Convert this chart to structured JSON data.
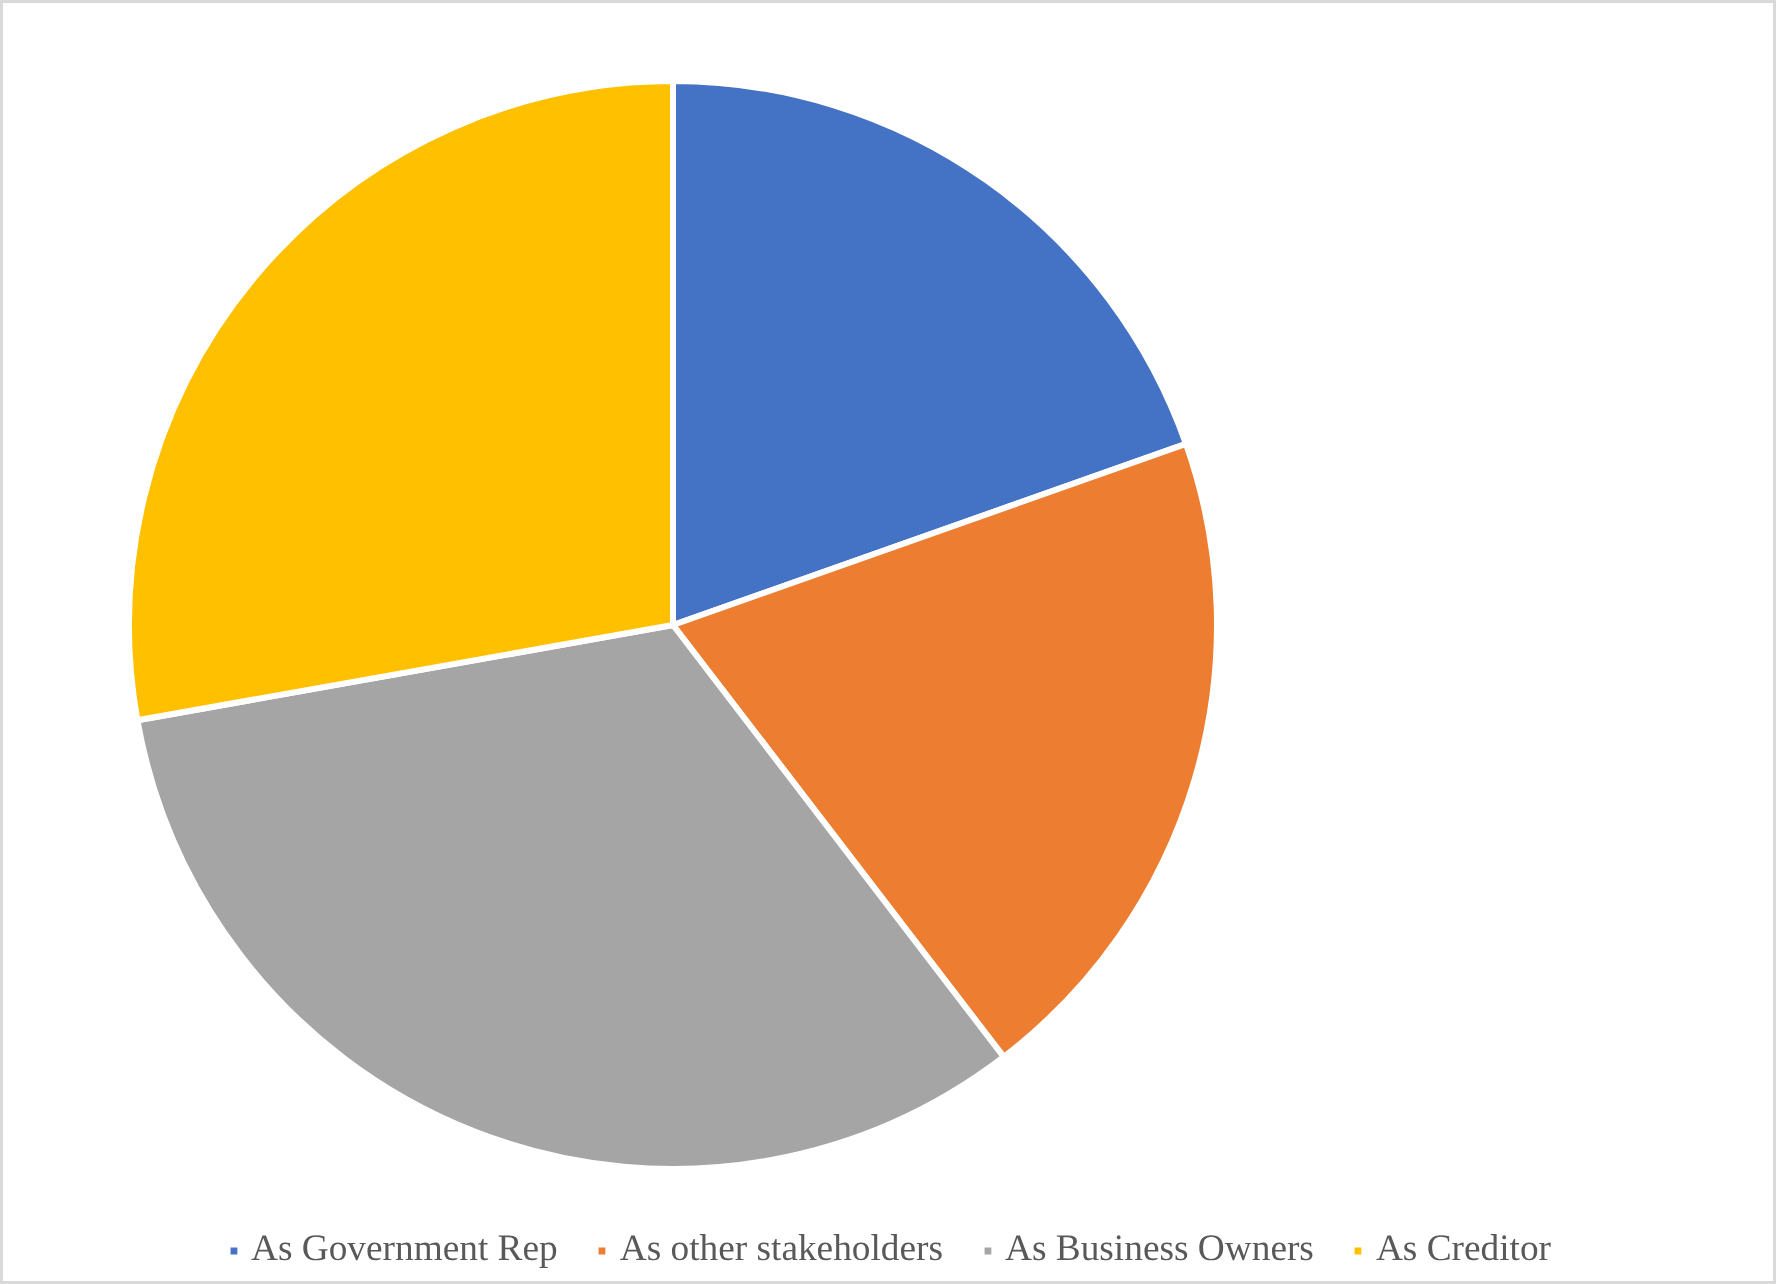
{
  "chart_data": {
    "type": "pie",
    "categories": [
      "As Government Rep",
      "As other stakeholders",
      "As Business Owners",
      "As Creditor"
    ],
    "values": [
      19.6,
      20.0,
      32.6,
      27.8
    ],
    "colors": [
      "#4472c4",
      "#ed7d31",
      "#a5a5a5",
      "#ffc000"
    ],
    "legend": "bottom"
  }
}
